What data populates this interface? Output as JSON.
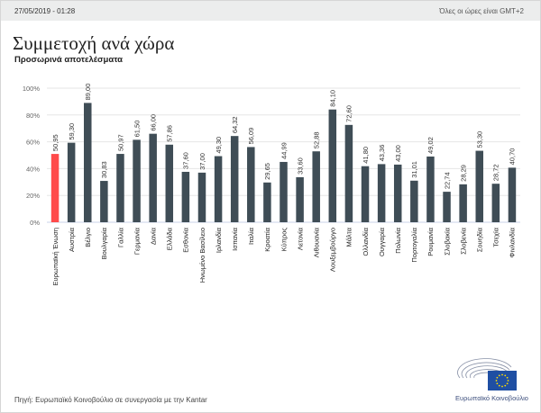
{
  "header": {
    "datetime": "27/05/2019 - 01:28",
    "timezone_note": "Όλες οι ώρες είναι GMT+2"
  },
  "title": "Συμμετοχή ανά χώρα",
  "subtitle": "Προσωρινά αποτελέσματα",
  "footer": {
    "source": "Πηγή: Ευρωπαϊκό Κοινοβούλιο σε συνεργασία με την Kantar",
    "logo_text": "Ευρωπαϊκό Κοινοβούλιο"
  },
  "colors": {
    "bar": "#3f4d56",
    "highlight": "#ff4a4a",
    "grid": "#e6e6e6",
    "axis": "#c9d3ea"
  },
  "chart_data": {
    "type": "bar",
    "title": "Συμμετοχή ανά χώρα",
    "ylabel": "",
    "xlabel": "",
    "ylim": [
      0,
      100
    ],
    "yticks": [
      0,
      20,
      40,
      60,
      80,
      100
    ],
    "ytick_labels": [
      "0%",
      "20%",
      "40%",
      "60%",
      "80%",
      "100%"
    ],
    "grid": true,
    "highlight_index": 0,
    "categories": [
      "Ευρωπαϊκή Ένωση",
      "Αυστρία",
      "Βέλγιο",
      "Βουλγαρία",
      "Γαλλία",
      "Γερμανία",
      "Δανία",
      "Ελλάδα",
      "Εσθονία",
      "Ηνωμένο Βασίλειο",
      "Ιρλανδία",
      "Ισπανία",
      "Ιταλία",
      "Κροατία",
      "Κύπρος",
      "Λετονία",
      "Λιθουανία",
      "Λουξεμβούργο",
      "Μάλτα",
      "Ολλανδία",
      "Ουγγαρία",
      "Πολωνία",
      "Πορτογαλία",
      "Ρουμανία",
      "Σλοβακία",
      "Σλοβενία",
      "Σουηδία",
      "Τσεχία",
      "Φινλανδία"
    ],
    "values": [
      50.95,
      59.3,
      89.0,
      30.83,
      50.97,
      61.5,
      66.0,
      57.86,
      37.6,
      37.0,
      49.3,
      64.32,
      56.09,
      29.65,
      44.99,
      33.6,
      52.88,
      84.1,
      72.6,
      41.8,
      43.36,
      43.0,
      31.01,
      49.02,
      22.74,
      28.29,
      53.3,
      28.72,
      40.7
    ],
    "value_labels": [
      "50,95",
      "59,30",
      "89,00",
      "30,83",
      "50,97",
      "61,50",
      "66,00",
      "57,86",
      "37,60",
      "37,00",
      "49,30",
      "64,32",
      "56,09",
      "29,65",
      "44,99",
      "33,60",
      "52,88",
      "84,10",
      "72,60",
      "41,80",
      "43,36",
      "43,00",
      "31,01",
      "49,02",
      "22,74",
      "28,29",
      "53,30",
      "28,72",
      "40,70"
    ]
  }
}
